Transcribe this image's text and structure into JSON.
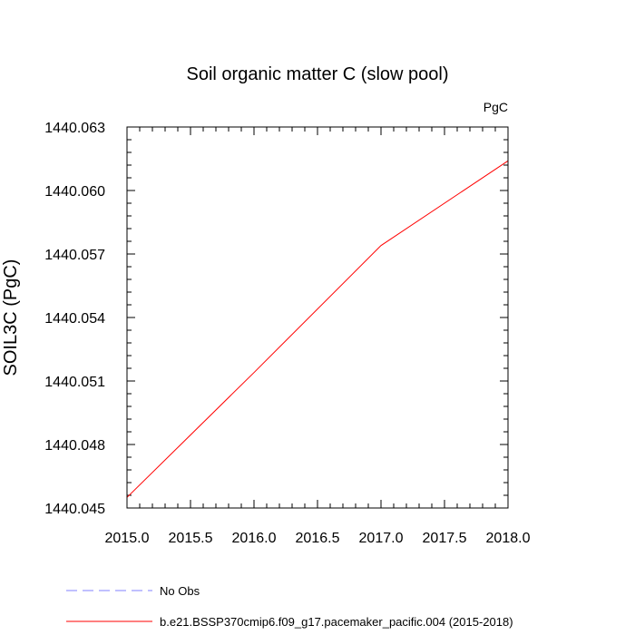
{
  "chart_data": {
    "type": "line",
    "title": "Soil organic matter C (slow pool)",
    "units_label": "PgC",
    "ylabel": "SOIL3C  (PgC)",
    "xlabel": "",
    "xlim": [
      2015.0,
      2018.0
    ],
    "ylim": [
      1440.045,
      1440.063
    ],
    "xticks": [
      2015.0,
      2015.5,
      2016.0,
      2016.5,
      2017.0,
      2017.5,
      2018.0
    ],
    "xtick_labels": [
      "2015.0",
      "2015.5",
      "2016.0",
      "2016.5",
      "2017.0",
      "2017.5",
      "2018.0"
    ],
    "xminor_step": 0.1,
    "yticks": [
      1440.045,
      1440.048,
      1440.051,
      1440.054,
      1440.057,
      1440.06,
      1440.063
    ],
    "ytick_labels": [
      "1440.045",
      "1440.048",
      "1440.051",
      "1440.054",
      "1440.057",
      "1440.060",
      "1440.063"
    ],
    "yminor_step": 0.0006,
    "grid": false,
    "legend_position": "bottom",
    "series": [
      {
        "name": "b.e21.BSSP370cmip6.f09_g17.pacemaker_pacific.004 (2015-2018)",
        "color": "#ff0000",
        "dash": "solid",
        "x": [
          2015.0,
          2016.0,
          2017.0,
          2018.0
        ],
        "y": [
          1440.0455,
          1440.0514,
          1440.0574,
          1440.0614
        ]
      }
    ],
    "legend": [
      {
        "label": "No Obs",
        "color": "#8080ff",
        "dash": "dashed"
      },
      {
        "label": "b.e21.BSSP370cmip6.f09_g17.pacemaker_pacific.004 (2015-2018)",
        "color": "#ff0000",
        "dash": "solid"
      }
    ]
  }
}
